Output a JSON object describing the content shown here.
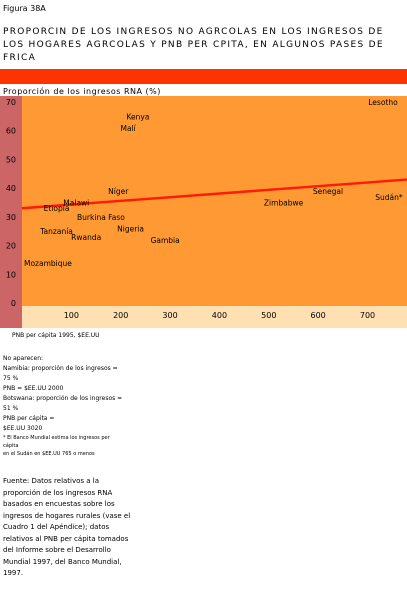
{
  "figure_label": "Figura 38A",
  "title_lines": [
    "PROPORCIN DE LOS INGRESOS NO AGRCOLAS EN LOS INGRESOS DE",
    "LOS HOGARES AGRCOLAS  Y PNB PER CPITA, EN ALGUNOS PASES DE",
    "FRICA"
  ],
  "colors": {
    "accent_bar": "#ff3300",
    "plot_bg": "#ff9933",
    "axis_bg": "#cc6666",
    "xaxis_bg": "#ffe0b3",
    "trend": "#ff1a00"
  },
  "chart_data": {
    "type": "scatter",
    "title": "",
    "ylabel": "Proporción de los ingresos RNA (%)",
    "xlabel": "PNB per cápita 1995, $EE.UU",
    "xlim": [
      0,
      780
    ],
    "ylim": [
      0,
      70
    ],
    "xticks": [
      100,
      200,
      300,
      400,
      500,
      600,
      700
    ],
    "yticks": [
      0,
      10,
      20,
      30,
      40,
      50,
      60,
      70
    ],
    "points": [
      {
        "label": "Kenya",
        "x": 235,
        "y": 65
      },
      {
        "label": "Malí",
        "x": 215,
        "y": 61
      },
      {
        "label": "Níger",
        "x": 195,
        "y": 39
      },
      {
        "label": "Malawi",
        "x": 110,
        "y": 35
      },
      {
        "label": "Etiopía",
        "x": 70,
        "y": 33
      },
      {
        "label": "Burkina Faso",
        "x": 160,
        "y": 30
      },
      {
        "label": "Nigeria",
        "x": 220,
        "y": 26
      },
      {
        "label": "Tanzanía",
        "x": 70,
        "y": 25
      },
      {
        "label": "Rwanda",
        "x": 130,
        "y": 23
      },
      {
        "label": "Gambia",
        "x": 290,
        "y": 22
      },
      {
        "label": "Mozambique",
        "x": 50,
        "y": 14
      },
      {
        "label": "Zimbabwe",
        "x": 530,
        "y": 35
      },
      {
        "label": "Senegal",
        "x": 620,
        "y": 39
      },
      {
        "label": "Sudán*",
        "x": 755,
        "y": 37
      },
      {
        "label": "Lesotho",
        "x": 745,
        "y": 70
      }
    ],
    "trend_line": {
      "x": [
        0,
        780
      ],
      "y": [
        33,
        43
      ]
    },
    "grid": false,
    "legend": "none"
  },
  "notes": {
    "lines": [
      "No aparecen:",
      "Namibia:    proporción de los ingresos =",
      "75 %",
      "              PNB = $EE.UU 2000",
      "Botswana: proporción de los ingresos =",
      "51 %",
      "              PNB per cápita =",
      "$EE.UU 3020"
    ]
  },
  "footnote": {
    "lines": [
      "* El Banco Mundial estima los ingresos per",
      "cápita",
      "en el Sudán en $EE.UU 765 o menos"
    ]
  },
  "source": {
    "lines": [
      "Fuente: Datos relativos a la",
      "proporción de los ingresos RNA",
      "basados en encuestas sobre los",
      "ingresos de hogares rurales (vase el",
      "Cuadro 1 del Apéndice); datos",
      "relativos al PNB per cápita tomados",
      "del Informe sobre el Desarrollo",
      "Mundial 1997, del Banco Mundial,",
      "1997."
    ]
  }
}
